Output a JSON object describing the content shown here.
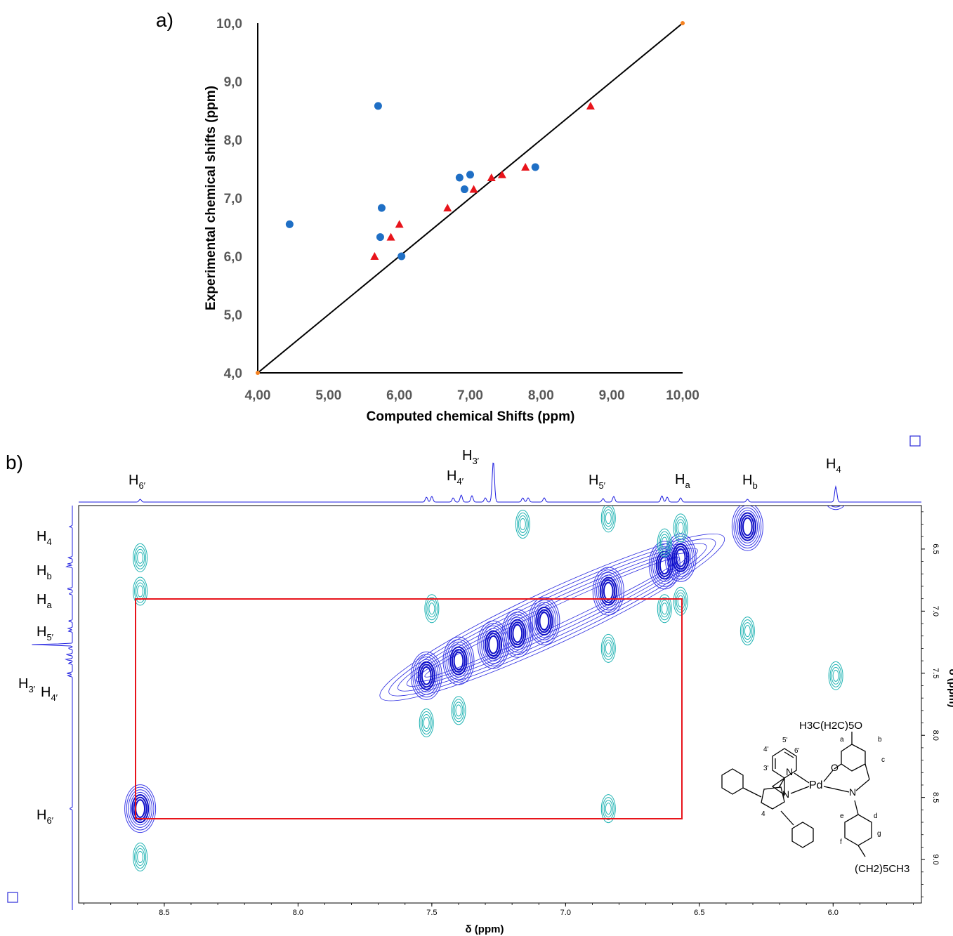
{
  "panel_a": {
    "panel_label": "a)",
    "xlabel": "Computed chemical Shifts (ppm)",
    "ylabel": "Experimental chemical shifts (ppm)",
    "xticks": [
      "4,00",
      "5,00",
      "6,00",
      "7,00",
      "8,00",
      "9,00",
      "10,00"
    ],
    "yticks": [
      "4,0",
      "5,0",
      "6,0",
      "7,0",
      "8,0",
      "9,0",
      "10,0"
    ]
  },
  "panel_b": {
    "panel_label": "b)",
    "xlabel": "δ (ppm)",
    "ylabel": "δ (ppm)",
    "xticks": [
      "8.5",
      "8.0",
      "7.5",
      "7.0",
      "6.5",
      "6.0"
    ],
    "yticks": [
      "6.5",
      "7.0",
      "7.5",
      "8.0",
      "8.5",
      "9.0"
    ],
    "top_peak_labels": [
      {
        "base": "H",
        "sub": "6′"
      },
      {
        "base": "H",
        "sub": "4′"
      },
      {
        "base": "H",
        "sub": "3′"
      },
      {
        "base": "H",
        "sub": "5′"
      },
      {
        "base": "H",
        "sub": "a"
      },
      {
        "base": "H",
        "sub": "b"
      },
      {
        "base": "H",
        "sub": "4"
      }
    ],
    "left_peak_labels": [
      {
        "base": "H",
        "sub": "4"
      },
      {
        "base": "H",
        "sub": "b"
      },
      {
        "base": "H",
        "sub": "a"
      },
      {
        "base": "H",
        "sub": "5′"
      },
      {
        "base": "H",
        "sub": "3′"
      },
      {
        "base": "H",
        "sub": "4′"
      },
      {
        "base": "H",
        "sub": "6′"
      }
    ],
    "molecule": {
      "substituent_top": "H3C(H2C)5O",
      "substituent_bottom": "(CH2)5CH3",
      "metal": "Pd",
      "atoms": [
        "N",
        "N",
        "O",
        "N"
      ],
      "position_labels": [
        "4'",
        "5'",
        "6'",
        "3'",
        "4",
        "a",
        "b",
        "c",
        "d",
        "e",
        "f",
        "g"
      ]
    }
  },
  "chart_data": [
    {
      "type": "scatter",
      "title": "",
      "xlabel": "Computed chemical Shifts (ppm)",
      "ylabel": "Experimental chemical shifts (ppm)",
      "xlim": [
        4.0,
        10.0
      ],
      "ylim": [
        4.0,
        10.0
      ],
      "grid": false,
      "series": [
        {
          "marker": "circle",
          "color": "#1f6fc5",
          "points": [
            [
              4.45,
              6.55
            ],
            [
              5.7,
              8.58
            ],
            [
              5.75,
              6.83
            ],
            [
              5.73,
              6.33
            ],
            [
              6.03,
              6.0
            ],
            [
              6.85,
              7.35
            ],
            [
              6.92,
              7.15
            ],
            [
              7.0,
              7.4
            ],
            [
              7.92,
              7.53
            ]
          ]
        },
        {
          "marker": "triangle",
          "color": "#e8141b",
          "points": [
            [
              5.65,
              6.0
            ],
            [
              5.88,
              6.33
            ],
            [
              6.0,
              6.55
            ],
            [
              6.68,
              6.83
            ],
            [
              7.05,
              7.15
            ],
            [
              7.3,
              7.35
            ],
            [
              7.45,
              7.4
            ],
            [
              7.78,
              7.53
            ],
            [
              8.7,
              8.58
            ]
          ]
        },
        {
          "marker": "line",
          "color": "#000000",
          "points": [
            [
              4.0,
              4.0
            ],
            [
              10.0,
              10.0
            ]
          ]
        }
      ]
    },
    {
      "type": "heatmap",
      "title": "",
      "xlabel": "δ (ppm)",
      "ylabel": "δ (ppm)",
      "xlim": [
        8.82,
        5.67
      ],
      "ylim": [
        6.15,
        9.35
      ],
      "grid": false,
      "diagonal_peaks": [
        8.59,
        7.52,
        7.4,
        7.27,
        7.18,
        7.08,
        6.84,
        6.63,
        6.57,
        6.32,
        5.99
      ],
      "cross_peaks": [
        [
          8.59,
          6.84
        ],
        [
          8.59,
          6.57
        ],
        [
          8.59,
          8.98
        ],
        [
          6.84,
          8.59
        ],
        [
          7.5,
          6.98
        ],
        [
          7.16,
          6.3
        ],
        [
          6.32,
          7.16
        ],
        [
          5.99,
          7.52
        ],
        [
          6.84,
          7.3
        ],
        [
          6.84,
          6.25
        ],
        [
          7.4,
          7.8
        ],
        [
          7.52,
          7.9
        ],
        [
          6.63,
          6.45
        ],
        [
          6.57,
          6.33
        ],
        [
          6.63,
          6.98
        ],
        [
          6.57,
          6.92
        ]
      ],
      "boxed_correlation": {
        "x": [
          8.59,
          6.57
        ],
        "y": [
          6.57,
          8.59
        ]
      }
    }
  ]
}
